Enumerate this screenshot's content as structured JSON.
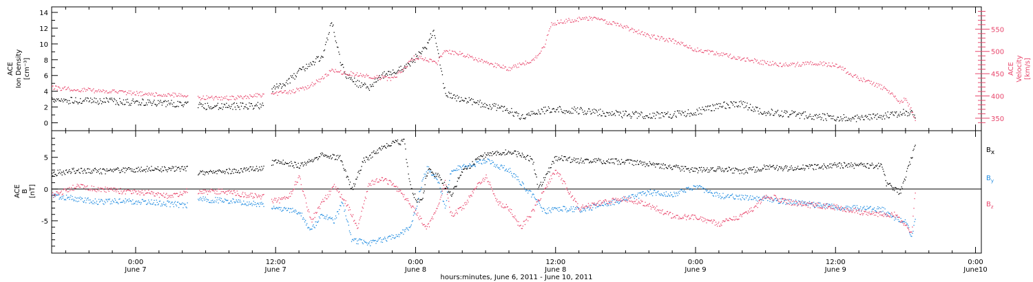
{
  "chart_data": [
    {
      "type": "scatter",
      "panel": "top",
      "title": "",
      "left_axis_label": [
        "ACE",
        "Ion Density",
        "[cm⁻³]"
      ],
      "right_axis_label": [
        "ACE",
        "Velocity",
        "[km/s]"
      ],
      "left_ylim": [
        -1,
        14.7
      ],
      "right_ylim": [
        322,
        600
      ],
      "left_ticks": [
        "0",
        "2",
        "4",
        "6",
        "8",
        "10",
        "12",
        "14"
      ],
      "right_ticks": [
        "350",
        "400",
        "450",
        "500",
        "550"
      ],
      "series": [
        {
          "key": "density",
          "axis": "left",
          "color": "#000000",
          "x_hours": [
            -7.2,
            -5,
            -3,
            -1,
            1,
            3,
            4.4,
            5.4,
            7,
            9,
            10.9,
            11.7,
            13,
            14,
            15,
            16,
            16.8,
            17.5,
            18,
            19,
            20,
            21,
            22,
            23,
            23.8,
            25,
            25.5,
            26.5,
            28,
            30,
            32,
            33,
            34,
            35,
            36,
            38,
            40,
            42,
            44,
            46,
            48,
            50,
            52,
            53,
            54,
            56,
            58,
            60,
            62,
            64,
            66,
            66.8
          ],
          "y": [
            3,
            2.8,
            2.8,
            2.7,
            2.6,
            2.5,
            2.3,
            2.2,
            2.1,
            2.2,
            2.2,
            4.3,
            5.3,
            6.5,
            7.5,
            8.5,
            13,
            8,
            6,
            5,
            4.6,
            6,
            6.5,
            7,
            8,
            10,
            12,
            3.8,
            3,
            2.3,
            1.6,
            0.8,
            1.1,
            1.6,
            1.7,
            1.6,
            1.3,
            1.1,
            1.0,
            1.1,
            1.4,
            2.2,
            2.5,
            1.7,
            1.4,
            1.2,
            0.9,
            0.7,
            0.6,
            0.9,
            1.4,
            1.0
          ]
        },
        {
          "key": "velocity",
          "axis": "right",
          "color": "#e8456b",
          "x_hours": [
            -7.2,
            -5,
            -3,
            -1,
            1,
            3,
            4.4,
            5.4,
            7,
            9,
            10.9,
            11.7,
            13,
            14,
            15,
            16,
            16.8,
            17.5,
            18,
            19,
            20,
            21,
            22,
            23.8,
            24.5,
            25.2,
            25.8,
            26.5,
            28,
            30,
            32,
            34,
            35,
            35.5,
            36,
            37,
            38,
            39,
            40,
            42,
            44,
            46,
            48,
            50,
            52,
            54,
            56,
            58,
            60,
            61,
            62,
            63,
            64,
            65,
            65.5,
            66,
            66.8
          ],
          "y": [
            420,
            415,
            412,
            408,
            405,
            403,
            400,
            397,
            396,
            397,
            404,
            405,
            410,
            415,
            425,
            440,
            460,
            455,
            453,
            448,
            445,
            442,
            438,
            486,
            485,
            480,
            475,
            500,
            495,
            475,
            462,
            480,
            510,
            560,
            565,
            570,
            573,
            575,
            570,
            555,
            535,
            525,
            505,
            495,
            485,
            475,
            470,
            475,
            470,
            455,
            440,
            430,
            420,
            400,
            385,
            395,
            350
          ]
        }
      ]
    },
    {
      "type": "scatter",
      "panel": "bottom",
      "title": "",
      "left_axis_label": [
        "ACE",
        "B",
        "[nT]"
      ],
      "ylim": [
        -10.1,
        9.2
      ],
      "ticks": [
        "-5",
        "0",
        "5"
      ],
      "zero_line": true,
      "legend": [
        {
          "text": "B",
          "sub": "x",
          "color": "#000000"
        },
        {
          "text": "B",
          "sub": "y",
          "color": "#1f8be0"
        },
        {
          "text": "B",
          "sub": "z",
          "color": "#e8456b"
        }
      ],
      "series": [
        {
          "key": "bx",
          "color": "#000000",
          "x_hours": [
            -7.2,
            -5,
            -3,
            -1,
            1,
            3,
            4.4,
            5.4,
            7,
            9,
            10.9,
            12,
            14,
            16,
            17.5,
            18.5,
            19.5,
            21,
            22,
            23,
            23.5,
            24,
            24.5,
            25,
            26,
            27,
            28,
            30,
            32,
            34,
            34.5,
            36,
            38,
            40,
            42,
            44,
            46,
            48,
            50,
            52,
            54,
            56,
            58,
            60,
            62,
            64,
            64.3,
            65.5,
            66.5,
            66.8
          ],
          "y": [
            2.5,
            3,
            2.9,
            3,
            3.2,
            3.2,
            3.3,
            2.5,
            2.8,
            3,
            3.4,
            4.5,
            3.7,
            5.5,
            5,
            0,
            4.5,
            6.5,
            7.3,
            7.5,
            0.5,
            -1.5,
            -2,
            3,
            2,
            -1,
            3,
            5.5,
            6,
            4.7,
            0,
            5,
            4.5,
            4.5,
            4.3,
            4,
            3.5,
            3,
            3.3,
            2.8,
            3.5,
            3.3,
            3.5,
            3.8,
            3.8,
            3.7,
            1,
            -0.5,
            5,
            7
          ]
        },
        {
          "key": "by",
          "color": "#1f8be0",
          "x_hours": [
            -7.2,
            -5,
            -3,
            -1,
            1,
            3,
            4.4,
            5.4,
            7,
            9,
            10.9,
            12,
            14,
            15,
            16,
            17,
            17.7,
            18.5,
            20,
            22,
            23.5,
            24,
            24.5,
            25,
            26,
            26.5,
            27,
            28,
            30,
            32,
            34,
            35,
            36,
            38,
            40,
            42,
            44,
            46,
            48,
            50,
            52,
            54,
            56,
            58,
            60,
            62,
            64,
            65,
            66,
            66.5,
            66.8
          ],
          "y": [
            -1,
            -1.5,
            -2,
            -1.8,
            -2,
            -2.3,
            -2.5,
            -1.5,
            -1.7,
            -2,
            -2.5,
            -3,
            -3.5,
            -6.5,
            -4,
            -5,
            -2,
            -8,
            -8.5,
            -7.5,
            -6.2,
            -3,
            1,
            3.5,
            1,
            -3,
            3,
            3.5,
            4.5,
            3,
            -1,
            -3.5,
            -3,
            -3.2,
            -2.5,
            -1.5,
            -0.5,
            -0.8,
            0.5,
            -1,
            -1.3,
            -1.5,
            -2,
            -2.4,
            -2.8,
            -3,
            -3.2,
            -4.5,
            -5,
            -7.5,
            -4.5
          ]
        },
        {
          "key": "bz",
          "color": "#e8456b",
          "x_hours": [
            -7.2,
            -5,
            -3,
            -1,
            1,
            3,
            4.4,
            5.4,
            7,
            9,
            10.9,
            12,
            13,
            14,
            15,
            16,
            17,
            18,
            19,
            20,
            21,
            22,
            23.8,
            24.5,
            25,
            26,
            26.5,
            27,
            28,
            29,
            30,
            31,
            32,
            33,
            34,
            35,
            36,
            38,
            40,
            42,
            44,
            46,
            48,
            50,
            52,
            53,
            54,
            56,
            58,
            60,
            62,
            64,
            65,
            66,
            66.5,
            66.8
          ],
          "y": [
            -1,
            0.5,
            0,
            -0.3,
            -0.5,
            -1.2,
            -0.2,
            -0.5,
            -0.3,
            -0.7,
            -1.2,
            -1.8,
            -1.5,
            2,
            -5,
            -2,
            0.5,
            -2,
            -6,
            1,
            1.5,
            1,
            -3,
            -5,
            -6,
            -2,
            1,
            -4,
            -3,
            0,
            2,
            -2,
            -3,
            -6,
            -3.5,
            0,
            3,
            -3,
            -2,
            -1.5,
            -2.5,
            -4.2,
            -4.5,
            -5.5,
            -4,
            -3,
            -1,
            -2,
            -2.5,
            -2.8,
            -3.5,
            -4,
            -4,
            -5.5,
            -7,
            -0.5
          ]
        }
      ]
    },
    {
      "type": "axis",
      "xlabel": "hours:minutes, June  6, 2011 - June 10, 2011",
      "x_range_hours": [
        -7.2,
        72.5
      ],
      "x_ticks": [
        {
          "hour": 0,
          "time": "0:00",
          "day": "June 7"
        },
        {
          "hour": 12,
          "time": "12:00",
          "day": "June 7"
        },
        {
          "hour": 24,
          "time": "0:00",
          "day": "June 8"
        },
        {
          "hour": 36,
          "time": "12:00",
          "day": "June 8"
        },
        {
          "hour": 48,
          "time": "0:00",
          "day": "June 9"
        },
        {
          "hour": 60,
          "time": "12:00",
          "day": "June 9"
        },
        {
          "hour": 72,
          "time": "0:00",
          "day": "June10"
        }
      ]
    }
  ]
}
